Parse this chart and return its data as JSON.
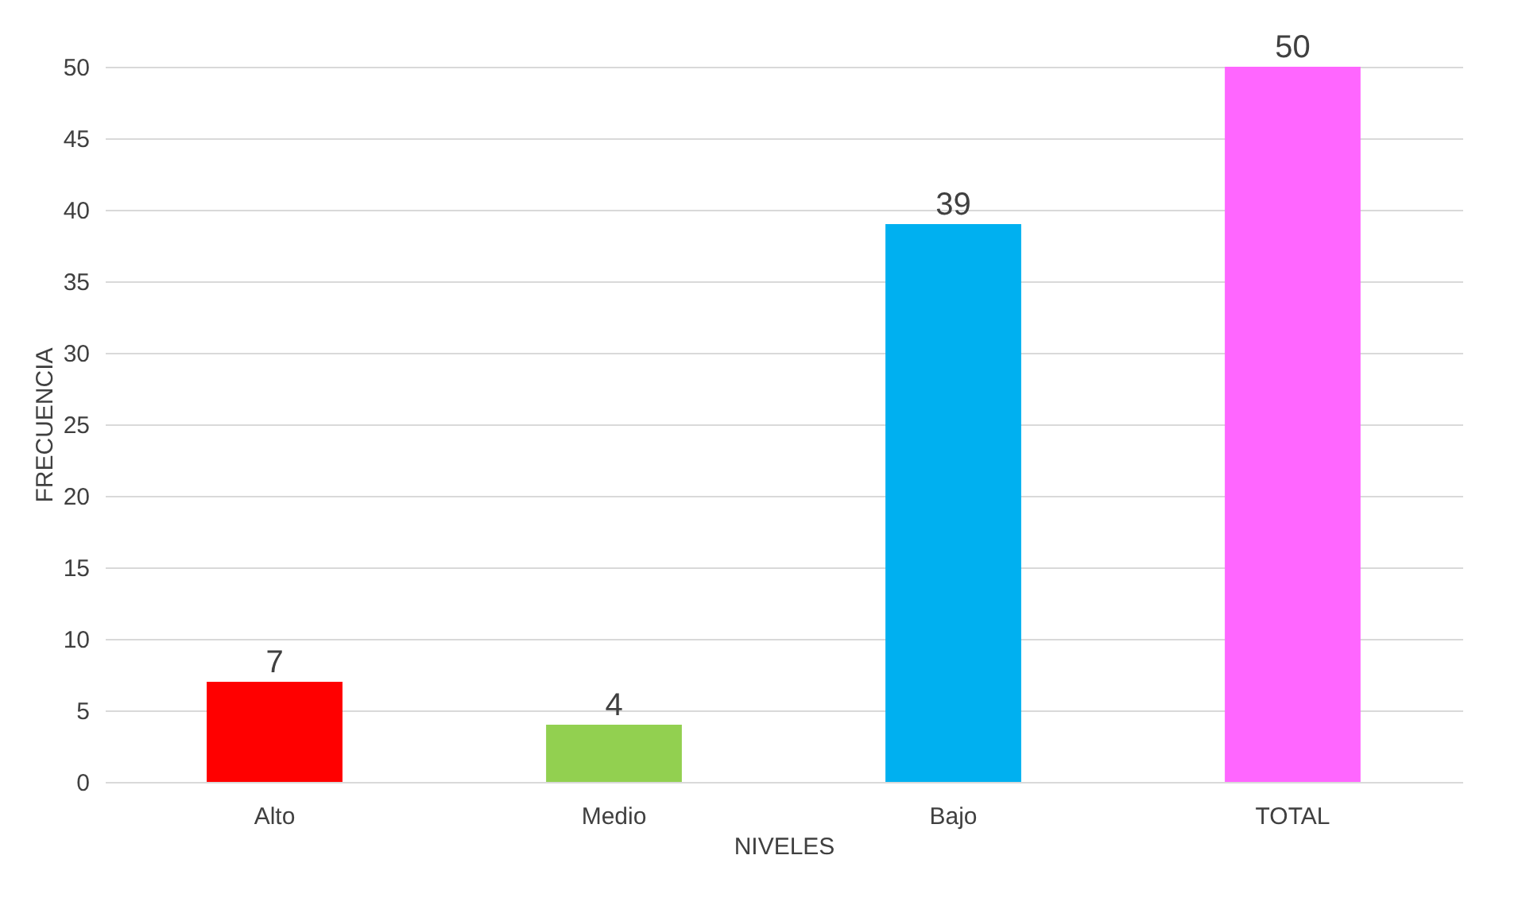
{
  "chart_data": {
    "type": "bar",
    "xlabel": "NIVELES",
    "ylabel": "FRECUENCIA",
    "categories": [
      "Alto",
      "Medio",
      "Bajo",
      "TOTAL"
    ],
    "values": [
      7,
      4,
      39,
      50
    ],
    "colors": [
      "#ff0000",
      "#92d050",
      "#00b0f0",
      "#ff66ff"
    ],
    "ylim": [
      0,
      50
    ],
    "yticks": [
      0,
      5,
      10,
      15,
      20,
      25,
      30,
      35,
      40,
      45,
      50
    ],
    "grid": "y",
    "data_labels": true
  }
}
